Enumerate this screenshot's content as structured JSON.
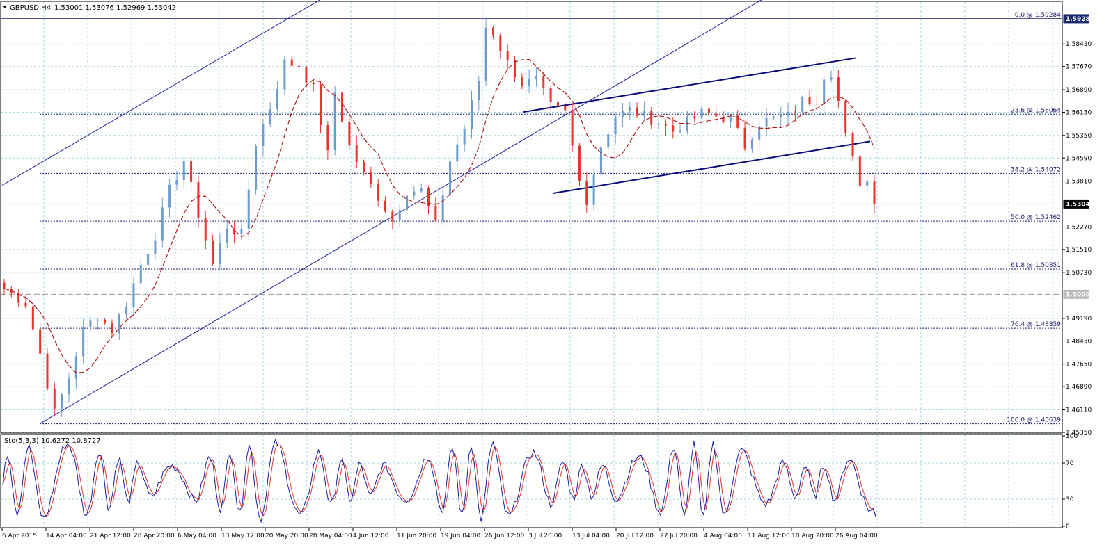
{
  "header": {
    "symbol": "GBPUSD,H4",
    "ohlc": "1.53001 1.53076 1.52969 1.53042"
  },
  "stoch": {
    "label": "Sto(5,3,3) 10.6272 10.8727",
    "ticks": [
      "100",
      "70",
      "30",
      "0"
    ]
  },
  "colors": {
    "background": "#ffffff",
    "grid": "#a9d6e6",
    "bull": "#6c9bd0",
    "bear": "#e8342a",
    "ma": "#b01818",
    "lines": "#1a1aa0",
    "channel_lines": "#0b0b80",
    "fib": "#1a1a6e",
    "stoch_main": "#1a1aa0",
    "stoch_signal": "#e8342a",
    "price_tag": "#000000"
  },
  "chart_data": {
    "type": "candlestick",
    "title": "GBPUSD,H4",
    "x_labels": [
      "6 Apr 2015",
      "14 Apr 04:00",
      "21 Apr 12:00",
      "28 Apr 20:00",
      "6 May 04:00",
      "13 May 12:00",
      "20 May 20:00",
      "28 May 04:00",
      "4 Jun 12:00",
      "11 Jun 20:00",
      "19 Jun 04:00",
      "26 Jun 12:00",
      "3 Jul 20:00",
      "13 Jul 04:00",
      "20 Jul 12:00",
      "27 Jul 20:00",
      "4 Aug 04:00",
      "11 Aug 12:00",
      "18 Aug 20:00",
      "26 Aug 04:00"
    ],
    "y_ticks": [
      "1.58430",
      "1.57670",
      "1.56890",
      "1.56130",
      "1.55350",
      "1.54590",
      "1.53810",
      "1.52270",
      "1.51510",
      "1.50730",
      "1.49190",
      "1.48430",
      "1.47650",
      "1.46890",
      "1.46110",
      "1.45350"
    ],
    "ylim": [
      1.4535,
      1.5984
    ],
    "current_price": "1.53042",
    "tagged_levels": [
      "1.59280",
      "1.50000"
    ],
    "fibonacci": [
      {
        "label": "0.0 @ 1.59284",
        "value": 1.59284
      },
      {
        "label": "23.6 @ 1.56064",
        "value": 1.56064
      },
      {
        "label": "38.2 @ 1.54072",
        "value": 1.54072
      },
      {
        "label": "50.0 @ 1.52462",
        "value": 1.52462
      },
      {
        "label": "61.8 @ 1.50851",
        "value": 1.50851
      },
      {
        "label": "76.4 @ 1.48859",
        "value": 1.48859
      },
      {
        "label": "100.0 @ 1.45639",
        "value": 1.45639
      }
    ],
    "anchors": [
      [
        0,
        1.502
      ],
      [
        3,
        1.497
      ],
      [
        5,
        1.48
      ],
      [
        7,
        1.46
      ],
      [
        9,
        1.472
      ],
      [
        11,
        1.488
      ],
      [
        13,
        1.493
      ],
      [
        15,
        1.488
      ],
      [
        17,
        1.497
      ],
      [
        19,
        1.51
      ],
      [
        21,
        1.52
      ],
      [
        23,
        1.535
      ],
      [
        25,
        1.545
      ],
      [
        27,
        1.527
      ],
      [
        29,
        1.51
      ],
      [
        31,
        1.523
      ],
      [
        33,
        1.52
      ],
      [
        35,
        1.551
      ],
      [
        37,
        1.563
      ],
      [
        39,
        1.578
      ],
      [
        41,
        1.577
      ],
      [
        43,
        1.569
      ],
      [
        45,
        1.547
      ],
      [
        46,
        1.568
      ],
      [
        48,
        1.55
      ],
      [
        50,
        1.54
      ],
      [
        52,
        1.533
      ],
      [
        54,
        1.525
      ],
      [
        56,
        1.535
      ],
      [
        58,
        1.535
      ],
      [
        60,
        1.523
      ],
      [
        62,
        1.545
      ],
      [
        64,
        1.556
      ],
      [
        66,
        1.572
      ],
      [
        67,
        1.59
      ],
      [
        68,
        1.588
      ],
      [
        70,
        1.578
      ],
      [
        72,
        1.571
      ],
      [
        74,
        1.572
      ],
      [
        76,
        1.563
      ],
      [
        78,
        1.561
      ],
      [
        80,
        1.538
      ],
      [
        81,
        1.532
      ],
      [
        83,
        1.55
      ],
      [
        85,
        1.56
      ],
      [
        87,
        1.562
      ],
      [
        89,
        1.56
      ],
      [
        91,
        1.558
      ],
      [
        93,
        1.555
      ],
      [
        95,
        1.558
      ],
      [
        97,
        1.561
      ],
      [
        99,
        1.56
      ],
      [
        101,
        1.559
      ],
      [
        103,
        1.55
      ],
      [
        105,
        1.558
      ],
      [
        107,
        1.559
      ],
      [
        109,
        1.56
      ],
      [
        111,
        1.565
      ],
      [
        113,
        1.566
      ],
      [
        114,
        1.574
      ],
      [
        115,
        1.575
      ],
      [
        116,
        1.565
      ],
      [
        117,
        1.553
      ],
      [
        118,
        1.545
      ],
      [
        119,
        1.538
      ],
      [
        120,
        1.538
      ],
      [
        121,
        1.53
      ]
    ]
  }
}
